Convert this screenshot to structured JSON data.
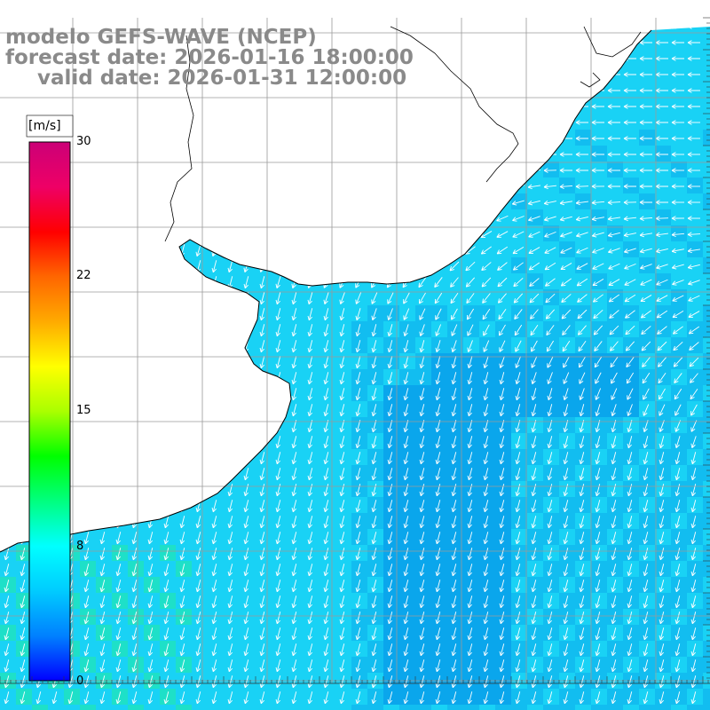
{
  "title": {
    "line1": "modelo GEFS-WAVE (NCEP)",
    "line2": "forecast date: 2026-01-16 18:00:00",
    "line3": "valid date: 2026-01-31 12:00:00"
  },
  "colorbar": {
    "unit": "[m/s]",
    "ticks": [
      "30",
      "22",
      "15",
      "8",
      "0"
    ],
    "tick_values": [
      30,
      22,
      15,
      8,
      0
    ],
    "colors": [
      "#0000ff",
      "#0080ff",
      "#00ccff",
      "#00ffff",
      "#00ff80",
      "#00ff00",
      "#aaff00",
      "#ffff00",
      "#ffaa00",
      "#ff6600",
      "#ff0000",
      "#ee0066",
      "#cc0077"
    ]
  },
  "map": {
    "variable": "wind speed and direction",
    "field_colors": {
      "sea_light": "#19d2f5",
      "sea_mid": "#12bdf0",
      "sea_deep": "#0aa6ec",
      "near_green": "#1ee0c8"
    },
    "arrow_color": "#ffffff",
    "land_color": "#ffffff",
    "grid_color": "#9a9a9a"
  }
}
